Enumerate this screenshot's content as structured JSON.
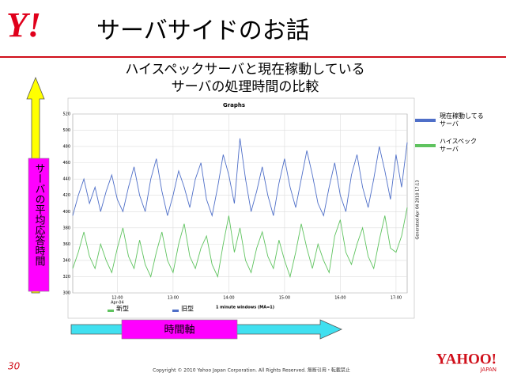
{
  "header": {
    "logo": "Y!",
    "title": "サーバサイドのお話"
  },
  "chart_data": {
    "type": "line",
    "subtitle": [
      "ハイスペックサーバと現在稼動している",
      "サーバの処理時間の比較"
    ],
    "title": "Graphs",
    "xlabel": "1 minute windows (MA=1)",
    "x_sublabel": "Apr-04",
    "generated": "Generated Apr 04 2010 17:13",
    "x": [
      "11:12",
      "11:18",
      "11:24",
      "11:30",
      "11:36",
      "11:42",
      "11:48",
      "11:54",
      "12:00",
      "12:06",
      "12:12",
      "12:18",
      "12:24",
      "12:30",
      "12:36",
      "12:42",
      "12:48",
      "12:54",
      "13:00",
      "13:06",
      "13:12",
      "13:18",
      "13:24",
      "13:30",
      "13:36",
      "13:42",
      "13:48",
      "13:54",
      "14:00",
      "14:06",
      "14:12",
      "14:18",
      "14:24",
      "14:30",
      "14:36",
      "14:42",
      "14:48",
      "14:54",
      "15:00",
      "15:06",
      "15:12",
      "15:18",
      "15:24",
      "15:30",
      "15:36",
      "15:42",
      "15:48",
      "15:54",
      "16:00",
      "16:06",
      "16:12",
      "16:18",
      "16:24",
      "16:30",
      "16:36",
      "16:42",
      "16:48",
      "16:54",
      "17:00",
      "17:06",
      "17:12"
    ],
    "series": [
      {
        "name": "現在稼動してるサーバ",
        "short_name": "旧型",
        "color": "#4f6fc8",
        "values": [
          395,
          420,
          440,
          410,
          430,
          400,
          425,
          445,
          415,
          400,
          430,
          455,
          420,
          400,
          440,
          465,
          425,
          395,
          420,
          450,
          430,
          405,
          440,
          460,
          415,
          395,
          430,
          470,
          445,
          410,
          490,
          440,
          400,
          425,
          455,
          420,
          395,
          435,
          465,
          430,
          405,
          440,
          475,
          445,
          410,
          395,
          430,
          460,
          420,
          400,
          445,
          470,
          430,
          405,
          440,
          480,
          450,
          415,
          470,
          430,
          485
        ]
      },
      {
        "name": "ハイスペックサーバ",
        "short_name": "新型",
        "color": "#5fc35f",
        "values": [
          330,
          350,
          375,
          345,
          330,
          360,
          340,
          325,
          355,
          380,
          345,
          330,
          365,
          335,
          320,
          350,
          375,
          340,
          325,
          360,
          385,
          345,
          330,
          355,
          370,
          335,
          320,
          360,
          395,
          350,
          380,
          340,
          325,
          355,
          375,
          345,
          330,
          365,
          340,
          320,
          350,
          385,
          355,
          330,
          360,
          340,
          325,
          370,
          390,
          350,
          335,
          360,
          380,
          345,
          330,
          365,
          395,
          355,
          350,
          370,
          405
        ]
      }
    ],
    "xlim": [
      "11:12",
      "17:12"
    ],
    "xticks": [
      "12:00",
      "13:00",
      "14:00",
      "15:00",
      "16:00",
      "17:00"
    ],
    "ylim": [
      300,
      520
    ],
    "yticks": [
      300,
      320,
      340,
      360,
      380,
      400,
      420,
      440,
      460,
      480,
      500,
      520
    ],
    "grid": true
  },
  "annotations": {
    "y_arrow": "サーバの平均応答時間",
    "x_arrow": "時間軸"
  },
  "footer": {
    "page": "30",
    "copyright": "Copyright © 2010 Yahoo Japan Corporation. All Rights Reserved. 無断引用・転載禁止",
    "brand": "YAHOO!",
    "brand_sub": "JAPAN"
  }
}
